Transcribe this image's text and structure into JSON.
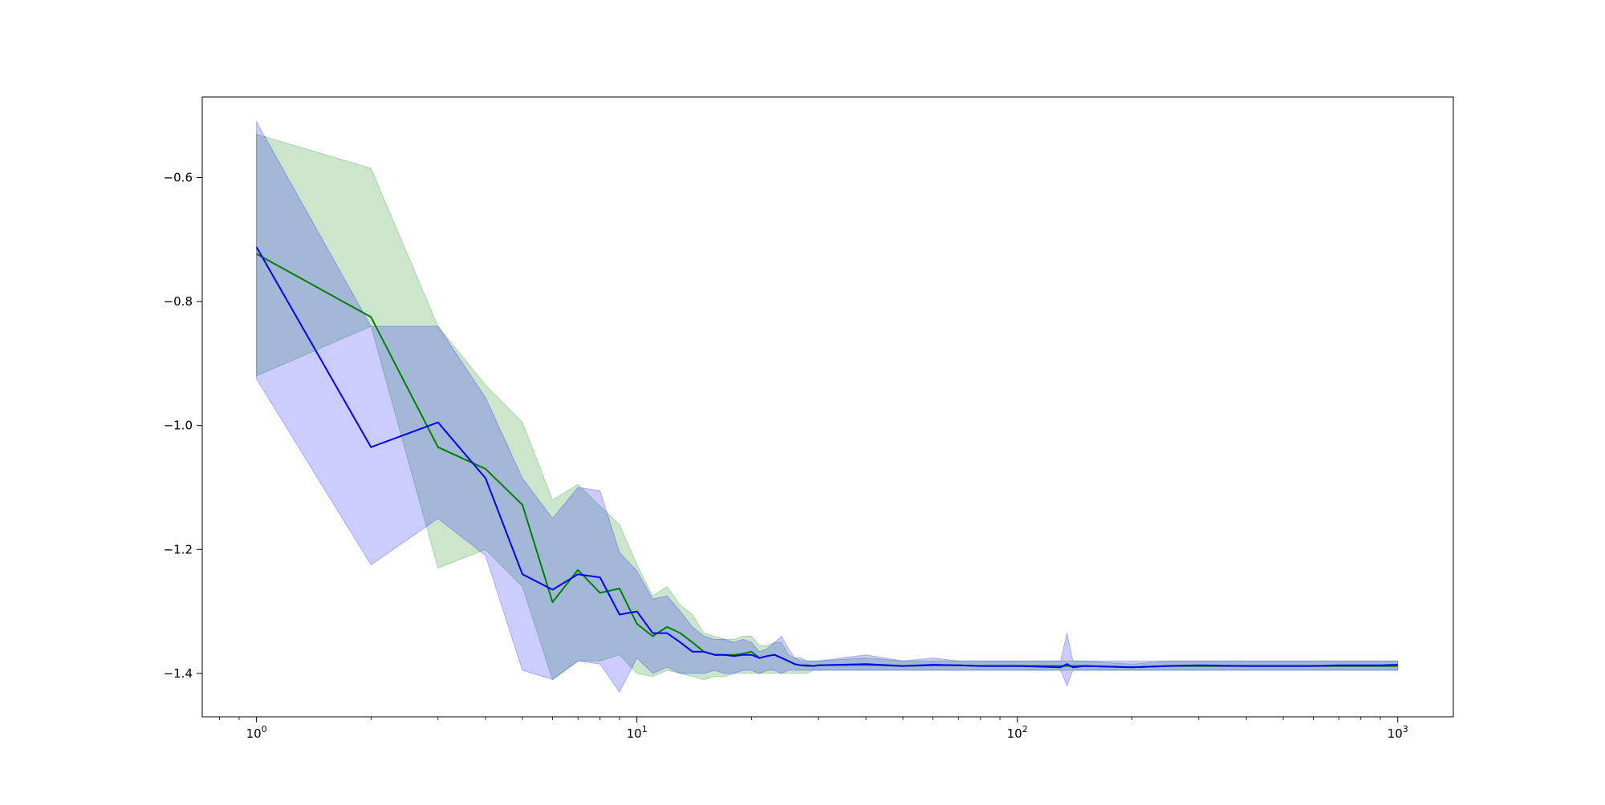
{
  "chart_data": {
    "type": "line",
    "title": "",
    "xlabel": "",
    "ylabel": "",
    "xscale": "log",
    "xlim": [
      0.72,
      1400
    ],
    "ylim": [
      -1.47,
      -0.47
    ],
    "grid": false,
    "legend": "none",
    "x_ticks": [
      {
        "value": 1,
        "base": "10",
        "exp": "0"
      },
      {
        "value": 10,
        "base": "10",
        "exp": "1"
      },
      {
        "value": 100,
        "base": "10",
        "exp": "2"
      },
      {
        "value": 1000,
        "base": "10",
        "exp": "3"
      }
    ],
    "y_ticks": [
      {
        "value": -0.6,
        "label": "−0.6"
      },
      {
        "value": -0.8,
        "label": "−0.8"
      },
      {
        "value": -1.0,
        "label": "−1.0"
      },
      {
        "value": -1.2,
        "label": "−1.2"
      },
      {
        "value": -1.4,
        "label": "−1.4"
      }
    ],
    "series": [
      {
        "line_color": "#008000",
        "band_color": "#008000",
        "band_opacity": 0.2,
        "x": [
          1,
          2,
          3,
          4,
          5,
          6,
          7,
          8,
          9,
          10,
          11,
          12,
          13,
          14,
          15,
          16,
          17,
          18,
          19,
          20,
          21,
          22,
          23,
          24,
          25,
          26,
          27,
          28,
          29,
          30,
          40,
          50,
          60,
          70,
          80,
          100,
          130,
          150,
          200,
          250,
          300,
          400,
          500,
          600,
          700,
          800,
          900,
          1000
        ],
        "y": [
          -0.723,
          -0.825,
          -1.035,
          -1.07,
          -1.128,
          -1.285,
          -1.233,
          -1.27,
          -1.263,
          -1.32,
          -1.34,
          -1.325,
          -1.335,
          -1.35,
          -1.365,
          -1.37,
          -1.37,
          -1.37,
          -1.368,
          -1.365,
          -1.375,
          -1.372,
          -1.37,
          -1.375,
          -1.38,
          -1.385,
          -1.387,
          -1.388,
          -1.388,
          -1.387,
          -1.386,
          -1.388,
          -1.387,
          -1.387,
          -1.388,
          -1.388,
          -1.388,
          -1.388,
          -1.39,
          -1.388,
          -1.388,
          -1.388,
          -1.388,
          -1.388,
          -1.388,
          -1.388,
          -1.388,
          -1.388
        ],
        "lower": [
          -0.92,
          -0.84,
          -1.23,
          -1.2,
          -1.26,
          -1.41,
          -1.38,
          -1.38,
          -1.37,
          -1.4,
          -1.405,
          -1.395,
          -1.4,
          -1.405,
          -1.41,
          -1.405,
          -1.405,
          -1.4,
          -1.4,
          -1.4,
          -1.4,
          -1.4,
          -1.4,
          -1.4,
          -1.4,
          -1.4,
          -1.4,
          -1.4,
          -1.395,
          -1.395,
          -1.395,
          -1.395,
          -1.395,
          -1.395,
          -1.395,
          -1.395,
          -1.395,
          -1.395,
          -1.395,
          -1.395,
          -1.395,
          -1.395,
          -1.395,
          -1.395,
          -1.395,
          -1.395,
          -1.395,
          -1.395
        ],
        "upper": [
          -0.53,
          -0.585,
          -0.84,
          -0.935,
          -0.995,
          -1.12,
          -1.095,
          -1.13,
          -1.16,
          -1.225,
          -1.275,
          -1.26,
          -1.29,
          -1.305,
          -1.335,
          -1.34,
          -1.345,
          -1.345,
          -1.34,
          -1.34,
          -1.355,
          -1.355,
          -1.35,
          -1.35,
          -1.37,
          -1.375,
          -1.38,
          -1.38,
          -1.38,
          -1.38,
          -1.375,
          -1.38,
          -1.38,
          -1.38,
          -1.38,
          -1.38,
          -1.38,
          -1.38,
          -1.385,
          -1.38,
          -1.38,
          -1.38,
          -1.38,
          -1.38,
          -1.38,
          -1.38,
          -1.38,
          -1.38
        ]
      },
      {
        "line_color": "#0000ff",
        "band_color": "#0000ff",
        "band_opacity": 0.2,
        "x": [
          1,
          2,
          3,
          4,
          5,
          6,
          7,
          8,
          9,
          10,
          11,
          12,
          13,
          14,
          15,
          16,
          17,
          18,
          19,
          20,
          21,
          22,
          23,
          24,
          25,
          26,
          27,
          28,
          29,
          30,
          40,
          50,
          60,
          70,
          80,
          100,
          130,
          135,
          140,
          150,
          200,
          250,
          300,
          400,
          500,
          600,
          700,
          800,
          900,
          1000
        ],
        "y": [
          -0.712,
          -1.035,
          -0.995,
          -1.085,
          -1.24,
          -1.265,
          -1.24,
          -1.245,
          -1.305,
          -1.3,
          -1.335,
          -1.335,
          -1.35,
          -1.365,
          -1.365,
          -1.37,
          -1.37,
          -1.372,
          -1.37,
          -1.37,
          -1.375,
          -1.372,
          -1.37,
          -1.375,
          -1.38,
          -1.385,
          -1.387,
          -1.387,
          -1.388,
          -1.387,
          -1.385,
          -1.388,
          -1.386,
          -1.387,
          -1.388,
          -1.388,
          -1.39,
          -1.385,
          -1.39,
          -1.388,
          -1.39,
          -1.388,
          -1.387,
          -1.388,
          -1.388,
          -1.388,
          -1.387,
          -1.387,
          -1.387,
          -1.386
        ],
        "lower": [
          -0.925,
          -1.225,
          -1.15,
          -1.21,
          -1.395,
          -1.41,
          -1.38,
          -1.385,
          -1.43,
          -1.375,
          -1.4,
          -1.39,
          -1.4,
          -1.4,
          -1.4,
          -1.395,
          -1.4,
          -1.4,
          -1.395,
          -1.395,
          -1.4,
          -1.395,
          -1.395,
          -1.4,
          -1.395,
          -1.395,
          -1.395,
          -1.395,
          -1.395,
          -1.395,
          -1.395,
          -1.395,
          -1.395,
          -1.395,
          -1.395,
          -1.395,
          -1.395,
          -1.42,
          -1.395,
          -1.395,
          -1.395,
          -1.395,
          -1.395,
          -1.395,
          -1.395,
          -1.395,
          -1.395,
          -1.395,
          -1.395,
          -1.395
        ],
        "upper": [
          -0.51,
          -0.84,
          -0.84,
          -0.955,
          -1.085,
          -1.15,
          -1.1,
          -1.105,
          -1.205,
          -1.235,
          -1.28,
          -1.275,
          -1.3,
          -1.325,
          -1.34,
          -1.345,
          -1.345,
          -1.35,
          -1.345,
          -1.35,
          -1.365,
          -1.36,
          -1.35,
          -1.34,
          -1.36,
          -1.375,
          -1.375,
          -1.38,
          -1.38,
          -1.38,
          -1.37,
          -1.38,
          -1.375,
          -1.38,
          -1.38,
          -1.38,
          -1.38,
          -1.335,
          -1.38,
          -1.38,
          -1.38,
          -1.38,
          -1.38,
          -1.38,
          -1.38,
          -1.38,
          -1.38,
          -1.38,
          -1.38,
          -1.38
        ]
      }
    ]
  }
}
